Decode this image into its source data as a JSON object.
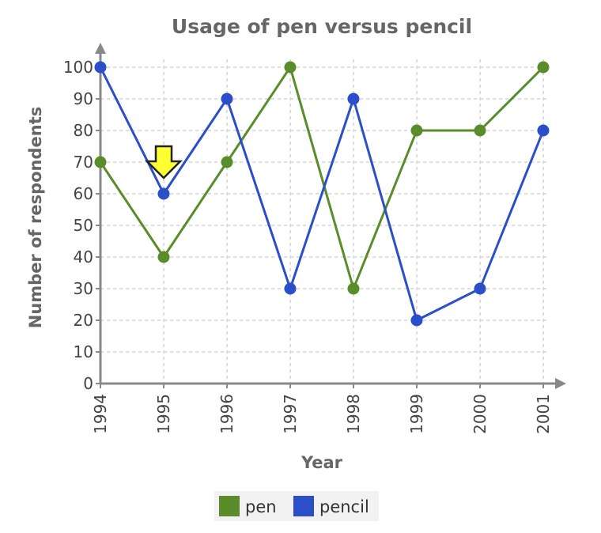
{
  "chart_data": {
    "type": "line",
    "title": "Usage of pen versus pencil",
    "xlabel": "Year",
    "ylabel": "Number of respondents",
    "categories": [
      "1994",
      "1995",
      "1996",
      "1997",
      "1998",
      "1999",
      "2000",
      "2001"
    ],
    "ylim": [
      0,
      100
    ],
    "yticks": [
      0,
      10,
      20,
      30,
      40,
      50,
      60,
      70,
      80,
      90,
      100
    ],
    "grid": true,
    "legend_position": "bottom",
    "series": [
      {
        "name": "pen",
        "color": "#5b8c2a",
        "values": [
          70,
          40,
          70,
          100,
          30,
          80,
          80,
          100
        ]
      },
      {
        "name": "pencil",
        "color": "#2a4fc9",
        "values": [
          100,
          60,
          90,
          30,
          90,
          20,
          30,
          80
        ]
      }
    ],
    "annotation": {
      "type": "arrow-down-icon",
      "category": "1995",
      "color": "#ffff33"
    }
  }
}
